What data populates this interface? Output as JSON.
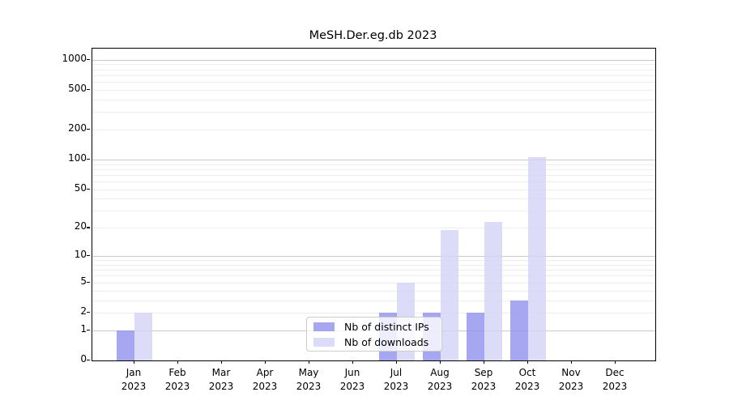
{
  "chart_data": {
    "type": "bar",
    "title": "MeSH.Der.eg.db 2023",
    "xlabel": "",
    "ylabel": "",
    "y_scale": "log1p",
    "ylim": [
      0,
      1290
    ],
    "grid": true,
    "legend_position": "bottom-center",
    "year_label": "2023",
    "categories": [
      "Jan",
      "Feb",
      "Mar",
      "Apr",
      "May",
      "Jun",
      "Jul",
      "Aug",
      "Sep",
      "Oct",
      "Nov",
      "Dec"
    ],
    "y_ticks": [
      0,
      1,
      2,
      5,
      10,
      20,
      50,
      100,
      200,
      500,
      1000
    ],
    "major_gridline_values": [
      1,
      10,
      100,
      1000
    ],
    "minor_gridline_values": [
      2,
      3,
      4,
      5,
      6,
      7,
      8,
      9,
      20,
      30,
      40,
      50,
      60,
      70,
      80,
      90,
      200,
      300,
      400,
      500,
      600,
      700,
      800,
      900
    ],
    "series": [
      {
        "name": "Nb of distinct IPs",
        "color": "#9191ee",
        "values": [
          1,
          0,
          0,
          0,
          0,
          0,
          2,
          2,
          2,
          3,
          0,
          0
        ]
      },
      {
        "name": "Nb of downloads",
        "color": "#d3d3f6",
        "values": [
          2,
          0,
          0,
          0,
          0,
          0,
          5,
          19,
          23,
          105,
          0,
          0
        ]
      }
    ],
    "colors": {
      "major_grid": "#c9c9c9",
      "minor_grid": "#ededed",
      "axis": "#000000",
      "background": "#ffffff"
    }
  }
}
